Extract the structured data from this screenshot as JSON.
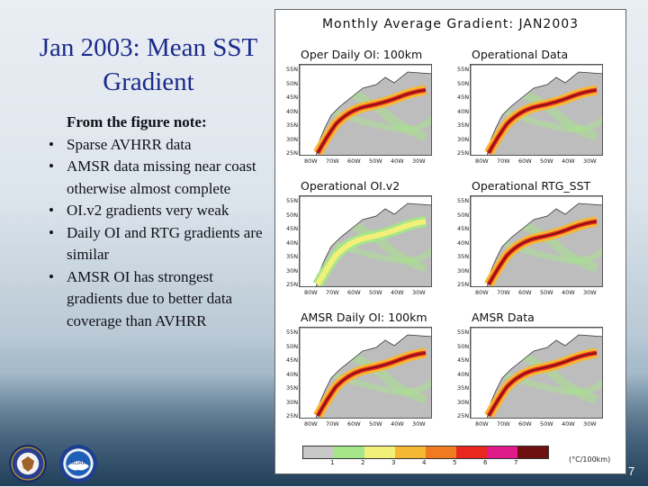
{
  "slide": {
    "title": "Jan 2003:  Mean SST Gradient",
    "lead": "From the figure note:",
    "bullets": [
      "Sparse AVHRR data",
      "AMSR data missing near coast otherwise almost complete",
      "OI.v2 gradients very weak",
      "Daily OI and RTG gradients are similar",
      "AMSR OI has strongest gradients due to better data coverage than AVHRR"
    ],
    "page_number": "7",
    "logos": [
      "commerce-seal",
      "noaa-logo"
    ],
    "logo_texts": {
      "noaa": "NOAA"
    }
  },
  "figure": {
    "title": "Monthly Average Gradient: JAN2003",
    "panels": [
      {
        "title": "Oper Daily OI: 100km"
      },
      {
        "title": "Operational Data"
      },
      {
        "title": "Operational OI.v2"
      },
      {
        "title": "Operational RTG_SST"
      },
      {
        "title": "AMSR Daily OI: 100km"
      },
      {
        "title": "AMSR Data"
      }
    ],
    "lat_ticks": [
      "55N",
      "50N",
      "45N",
      "40N",
      "35N",
      "30N",
      "25N"
    ],
    "lon_ticks": [
      "80W",
      "70W",
      "60W",
      "50W",
      "40W",
      "30W"
    ],
    "colorbar": {
      "labels": [
        "1",
        "2",
        "3",
        "4",
        "5",
        "6",
        "7"
      ],
      "colors": [
        "#c8c8c8",
        "#a6e68a",
        "#f3f07a",
        "#f5b833",
        "#ef7a1f",
        "#e8281e",
        "#e01a8a",
        "#6e1010"
      ],
      "unit": "(°C/100km)"
    }
  }
}
